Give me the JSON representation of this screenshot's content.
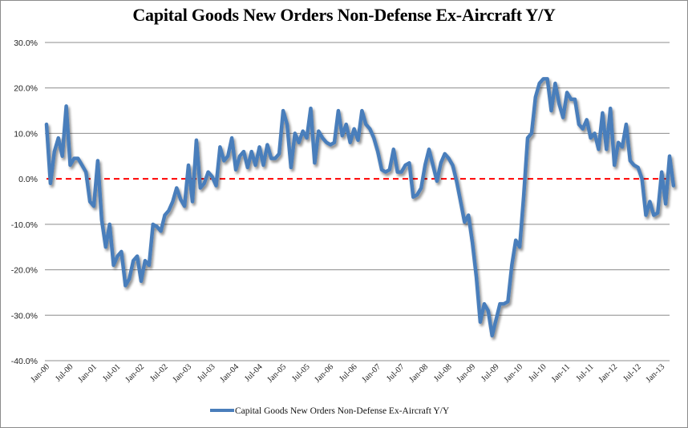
{
  "chart_data": {
    "type": "line",
    "title": "Capital Goods New Orders Non-Defense Ex-Aircraft Y/Y",
    "xlabel": "",
    "ylabel": "",
    "ylim": [
      -0.4,
      0.3
    ],
    "y_ticks": [
      0.3,
      0.2,
      0.1,
      0.0,
      -0.1,
      -0.2,
      -0.3,
      -0.4
    ],
    "y_tick_labels": [
      "30.0%",
      "20.0%",
      "10.0%",
      "0.0%",
      "-10.0%",
      "-20.0%",
      "-30.0%",
      "-40.0%"
    ],
    "x_tick_labels": [
      "Jan-00",
      "Jul-00",
      "Jan-01",
      "Jul-01",
      "Jan-02",
      "Jul-02",
      "Jan-03",
      "Jul-03",
      "Jan-04",
      "Jul-04",
      "Jan-05",
      "Jul-05",
      "Jan-06",
      "Jul-06",
      "Jan-07",
      "Jul-07",
      "Jan-08",
      "Jul-08",
      "Jan-09",
      "Jul-09",
      "Jan-10",
      "Jul-10",
      "Jan-11",
      "Jul-11",
      "Jan-12",
      "Jul-12",
      "Jan-13"
    ],
    "x_start": "Jan-00",
    "frequency": "monthly",
    "grid": true,
    "reference_line": {
      "value": 0.0,
      "color": "#ff0000",
      "style": "dashed"
    },
    "legend": {
      "position": "bottom",
      "entries": [
        "Capital Goods New Orders Non-Defense Ex-Aircraft Y/Y"
      ]
    },
    "series": [
      {
        "name": "Capital Goods New Orders Non-Defense Ex-Aircraft Y/Y",
        "color": "#4a7ebb",
        "values": [
          0.12,
          -0.01,
          0.06,
          0.09,
          0.05,
          0.16,
          0.03,
          0.045,
          0.045,
          0.03,
          0.015,
          -0.05,
          -0.06,
          0.04,
          -0.09,
          -0.15,
          -0.1,
          -0.19,
          -0.17,
          -0.16,
          -0.235,
          -0.22,
          -0.18,
          -0.17,
          -0.225,
          -0.18,
          -0.19,
          -0.1,
          -0.105,
          -0.115,
          -0.08,
          -0.07,
          -0.05,
          -0.02,
          -0.045,
          -0.06,
          0.03,
          -0.05,
          0.085,
          -0.02,
          -0.01,
          0.015,
          0.005,
          -0.015,
          0.07,
          0.04,
          0.05,
          0.09,
          0.02,
          0.05,
          0.06,
          0.025,
          0.06,
          0.03,
          0.07,
          0.03,
          0.075,
          0.045,
          0.045,
          0.055,
          0.15,
          0.12,
          0.025,
          0.1,
          0.08,
          0.105,
          0.09,
          0.155,
          0.035,
          0.105,
          0.09,
          0.08,
          0.075,
          0.08,
          0.15,
          0.095,
          0.12,
          0.08,
          0.11,
          0.085,
          0.15,
          0.12,
          0.11,
          0.09,
          0.06,
          0.02,
          0.015,
          0.02,
          0.065,
          0.015,
          0.015,
          0.03,
          0.035,
          -0.04,
          -0.035,
          -0.02,
          0.03,
          0.065,
          0.03,
          -0.005,
          0.035,
          0.055,
          0.045,
          0.03,
          -0.005,
          -0.05,
          -0.095,
          -0.08,
          -0.14,
          -0.215,
          -0.315,
          -0.275,
          -0.29,
          -0.345,
          -0.31,
          -0.275,
          -0.275,
          -0.27,
          -0.19,
          -0.135,
          -0.15,
          -0.04,
          0.09,
          0.1,
          0.18,
          0.21,
          0.22,
          0.22,
          0.15,
          0.21,
          0.165,
          0.135,
          0.19,
          0.175,
          0.175,
          0.12,
          0.11,
          0.13,
          0.09,
          0.1,
          0.065,
          0.145,
          0.065,
          0.155,
          0.03,
          0.08,
          0.07,
          0.12,
          0.04,
          0.03,
          0.025,
          0.0,
          -0.08,
          -0.05,
          -0.08,
          -0.075,
          0.015,
          -0.055,
          0.05,
          -0.015
        ]
      }
    ]
  }
}
